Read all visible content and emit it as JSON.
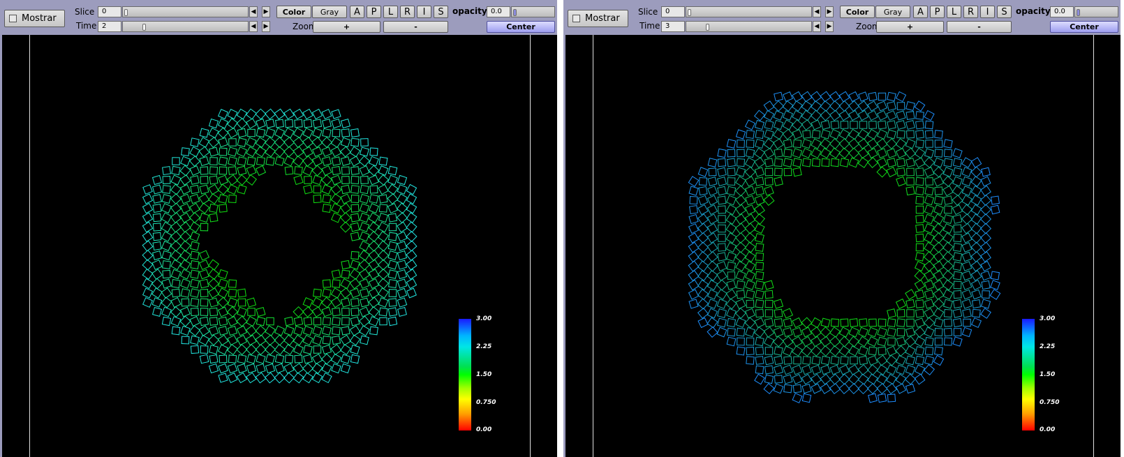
{
  "panels": [
    {
      "mostrar_label": "Mostrar",
      "slice_label": "Slice",
      "slice_value": "0",
      "slice_position": 0.0,
      "time_label": "Time",
      "time_value": "2",
      "time_position": 0.15,
      "color_label": "Color",
      "gray_label": "Gray",
      "view_buttons": [
        "A",
        "P",
        "L",
        "R",
        "I",
        "S"
      ],
      "zoom_label": "Zoom",
      "zoom_in_label": "+",
      "zoom_out_label": "-",
      "opacity_label": "opacity",
      "opacity_value": "0.0",
      "opacity_position": 0.0,
      "center_label": "Center",
      "ring": {
        "outer_color": "#22e6e6",
        "inner_color": "#10e010",
        "hole_shape": "diamond"
      },
      "colorbar_ticks": [
        "3.00",
        "2.25",
        "1.50",
        "0.750",
        "0.00"
      ]
    },
    {
      "mostrar_label": "Mostrar",
      "slice_label": "Slice",
      "slice_value": "0",
      "slice_position": 0.0,
      "time_label": "Time",
      "time_value": "3",
      "time_position": 0.15,
      "color_label": "Color",
      "gray_label": "Gray",
      "view_buttons": [
        "A",
        "P",
        "L",
        "R",
        "I",
        "S"
      ],
      "zoom_label": "Zoom",
      "zoom_in_label": "+",
      "zoom_out_label": "-",
      "opacity_label": "opacity",
      "opacity_value": "0.0",
      "opacity_position": 0.0,
      "center_label": "Center",
      "ring": {
        "outer_color": "#1e8cff",
        "inner_color": "#10e010",
        "hole_shape": "round"
      },
      "colorbar_ticks": [
        "3.00",
        "2.25",
        "1.50",
        "0.750",
        "0.00"
      ]
    }
  ],
  "icons": {
    "checkbox": "checkbox-icon",
    "arrow_left": "arrow-left-icon",
    "arrow_right": "arrow-right-icon"
  },
  "colorbar_gradient": [
    "#0000ff",
    "#00e6e6",
    "#00ff00",
    "#ffff00",
    "#ff0000"
  ]
}
